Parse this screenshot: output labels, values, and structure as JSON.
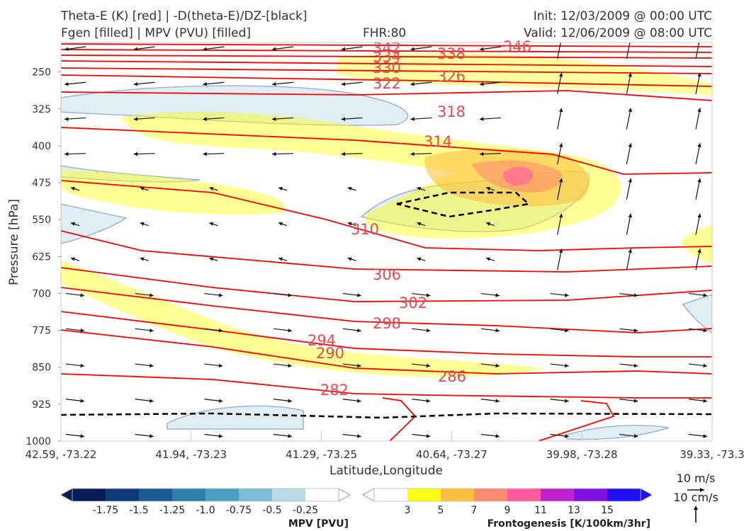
{
  "header": {
    "title_line1": "Theta-E (K) [red] | -D(theta-E)/DZ-[black]",
    "title_line2": "Fgen [filled] | MPV (PVU) [filled]",
    "fhr": "FHR:80",
    "init": "Init: 12/03/2009 @ 00:00 UTC",
    "valid": "Valid: 12/06/2009 @ 08:00 UTC"
  },
  "chart_data": {
    "type": "cross-section",
    "xlabel": "Latitude,Longitude",
    "ylabel": "Pressure [hPa]",
    "y_ticks": [
      250,
      325,
      400,
      475,
      550,
      625,
      700,
      775,
      850,
      925,
      1000
    ],
    "ylim": [
      190,
      1000
    ],
    "y_inverted": true,
    "x_ticks": [
      "42.59, -73.22",
      "41.94, -73.23",
      "41.29, -73.25",
      "40.64, -73.27",
      "39.98, -73.28",
      "39.33, -73.3"
    ],
    "theta_e_labels": [
      "342",
      "334",
      "330",
      "322",
      "338",
      "326",
      "346",
      "318",
      "314",
      "310",
      "306",
      "302",
      "298",
      "294",
      "290",
      "286",
      "282"
    ],
    "theta_e_color": "#ff0000",
    "mpv_colorbar": {
      "title": "MPV [PVU]",
      "ticks": [
        "-1.75",
        "-1.5",
        "-1.25",
        "-1.0",
        "-0.75",
        "-0.5",
        "-0.25"
      ],
      "colors": [
        "#081d58",
        "#0c3b78",
        "#1b5b91",
        "#2b7fa8",
        "#4aa0c0",
        "#7ebdd3",
        "#b9dbe6",
        "#ffffff"
      ]
    },
    "fgen_colorbar": {
      "title": "Frontogenesis [K/100km/3hr]",
      "ticks": [
        "3",
        "5",
        "7",
        "9",
        "11",
        "13",
        "15"
      ],
      "colors": [
        "#ffffff",
        "#ffff10",
        "#ffc040",
        "#ff8c70",
        "#ff5aa0",
        "#c020d0",
        "#8010e0",
        "#2010f0"
      ]
    },
    "wind_scale": {
      "u": "10 m/s",
      "w": "10 cm/s"
    }
  }
}
